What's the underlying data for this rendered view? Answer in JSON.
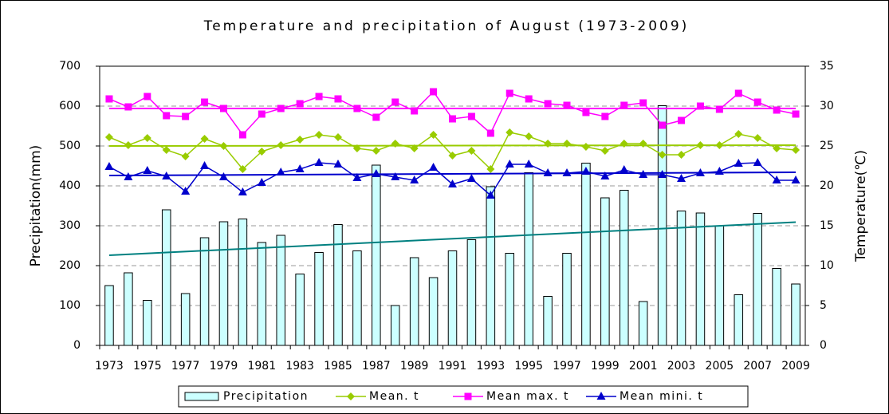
{
  "chart_data": {
    "type": "bar-line",
    "title": "Temperature and precipitation of August (1973-2009)",
    "y_label": "Precipitation(mm)",
    "y2_label": "Temperature(℃)",
    "categories": [
      "1973",
      null,
      "1975",
      null,
      "1977",
      null,
      "1979",
      null,
      "1981",
      null,
      "1983",
      null,
      "1985",
      null,
      "1987",
      null,
      "1989",
      null,
      "1991",
      null,
      "1993",
      null,
      "1995",
      null,
      "1997",
      null,
      "1999",
      null,
      "2001",
      null,
      "2003",
      null,
      "2005",
      null,
      "2007",
      null,
      "2009"
    ],
    "ylim": [
      0,
      700
    ],
    "yticks": [
      0,
      100,
      200,
      300,
      400,
      500,
      600,
      700
    ],
    "y2lim": [
      0,
      35
    ],
    "y2ticks": [
      0,
      5,
      10,
      15,
      20,
      25,
      30,
      35
    ],
    "grid": true,
    "legend": "bottom",
    "series": [
      {
        "name": "Precipitation",
        "type": "bar",
        "color": "#ccffff",
        "trend_color": "#008080",
        "trend": [
          226,
          309
        ],
        "values": [
          150,
          182,
          113,
          340,
          130,
          270,
          310,
          317,
          258,
          276,
          179,
          233,
          303,
          237,
          452,
          100,
          220,
          170,
          237,
          265,
          398,
          231,
          433,
          123,
          231,
          457,
          370,
          389,
          110,
          601,
          337,
          332,
          300,
          127,
          331,
          193,
          154
        ]
      },
      {
        "name": "Mean. t",
        "type": "line",
        "axis": "y2",
        "color": "#99cc00",
        "marker": "diamond",
        "trend": [
          25.0,
          25.1
        ],
        "values": [
          26.1,
          25.1,
          26.0,
          24.5,
          23.7,
          25.9,
          25.0,
          22.1,
          24.3,
          25.1,
          25.8,
          26.4,
          26.1,
          24.7,
          24.4,
          25.3,
          24.7,
          26.4,
          23.8,
          24.4,
          22.1,
          26.7,
          26.2,
          25.3,
          25.3,
          24.9,
          24.4,
          25.3,
          25.3,
          23.9,
          23.9,
          25.1,
          25.1,
          26.5,
          26.0,
          24.7,
          24.5
        ]
      },
      {
        "name": "Mean max. t",
        "type": "line",
        "axis": "y2",
        "color": "#ff00ff",
        "marker": "square",
        "trend": [
          29.7,
          29.7
        ],
        "values": [
          30.9,
          29.9,
          31.2,
          28.8,
          28.7,
          30.5,
          29.7,
          26.4,
          29.0,
          29.7,
          30.3,
          31.2,
          30.9,
          29.7,
          28.6,
          30.5,
          29.4,
          31.8,
          28.4,
          28.7,
          26.6,
          31.6,
          30.9,
          30.3,
          30.1,
          29.2,
          28.7,
          30.1,
          30.4,
          27.6,
          28.2,
          30.0,
          29.6,
          31.6,
          30.5,
          29.5,
          29.0
        ]
      },
      {
        "name": "Mean mini. t",
        "type": "line",
        "axis": "y2",
        "color": "#0000cc",
        "marker": "triangle",
        "trend": [
          21.3,
          21.7
        ],
        "values": [
          22.4,
          21.1,
          21.9,
          21.2,
          19.3,
          22.5,
          21.1,
          19.2,
          20.4,
          21.7,
          22.1,
          22.9,
          22.7,
          21.0,
          21.5,
          21.1,
          20.7,
          22.3,
          20.2,
          20.9,
          18.8,
          22.7,
          22.7,
          21.6,
          21.6,
          21.8,
          21.2,
          22.0,
          21.4,
          21.4,
          20.9,
          21.6,
          21.8,
          22.8,
          22.9,
          20.7,
          20.7
        ]
      }
    ]
  }
}
